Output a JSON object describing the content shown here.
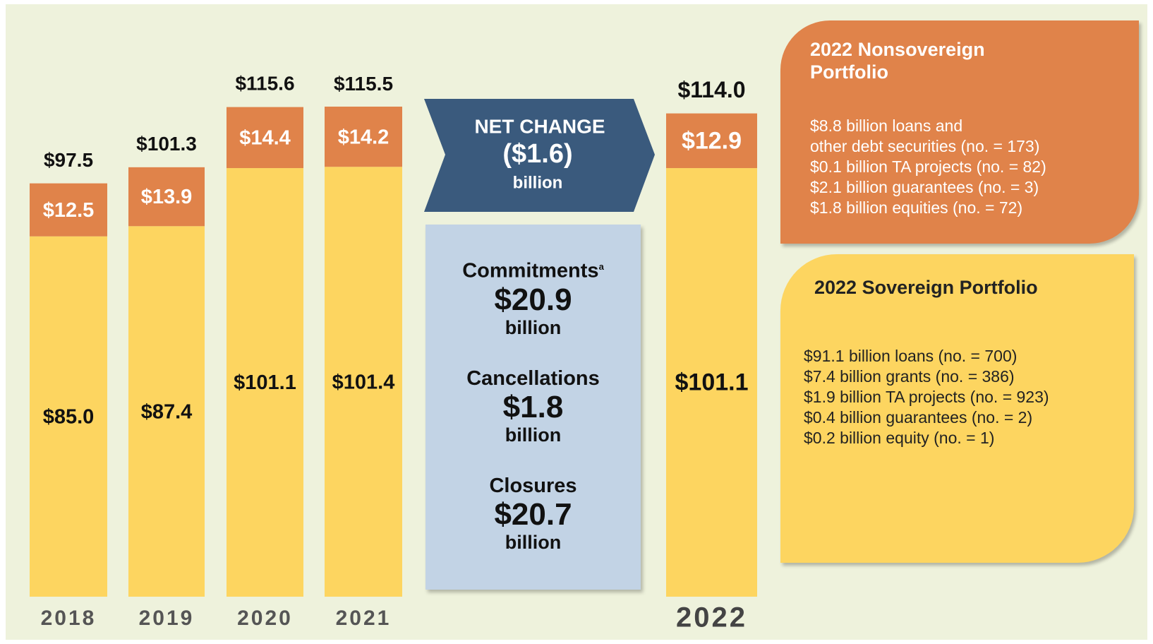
{
  "chart_data": {
    "type": "bar",
    "stacked": true,
    "categories": [
      "2018",
      "2019",
      "2020",
      "2021",
      "2022"
    ],
    "series": [
      {
        "color": "#fdd560",
        "values": [
          85.0,
          87.4,
          101.1,
          101.4,
          101.1
        ],
        "value_labels": [
          "$85.0",
          "$87.4",
          "$101.1",
          "$101.4",
          "$101.1"
        ]
      },
      {
        "color": "#e0834a",
        "values": [
          12.5,
          13.9,
          14.4,
          14.2,
          12.9
        ],
        "value_labels": [
          "$12.5",
          "$13.9",
          "$14.4",
          "$14.2",
          "$12.9"
        ]
      }
    ],
    "totals": [
      97.5,
      101.3,
      115.6,
      115.5,
      114.0
    ],
    "total_labels": [
      "$97.5",
      "$101.3",
      "$115.6",
      "$115.5",
      "$114.0"
    ]
  },
  "net_change": {
    "label": "NET CHANGE",
    "value": "($1.6)",
    "unit": "billion"
  },
  "flows": [
    {
      "label": "Commitments",
      "note": "a",
      "value": "$20.9",
      "unit": "billion"
    },
    {
      "label": "Cancellations",
      "value": "$1.8",
      "unit": "billion"
    },
    {
      "label": "Closures",
      "value": "$20.7",
      "unit": "billion"
    }
  ],
  "panels": [
    {
      "title": "2022 Nonsovereign Portfolio",
      "lines": [
        "$8.8 billion loans and",
        "other debt securities (no. = 173)",
        "$0.1 billion TA projects (no. = 82)",
        "$2.1 billion guarantees (no. = 3)",
        "$1.8 billion equities (no. = 72)"
      ]
    },
    {
      "title": "2022 Sovereign Portfolio",
      "lines": [
        "$91.1 billion loans (no. = 700)",
        "$7.4 billion grants (no. = 386)",
        "$1.9 billion TA projects (no. = 923)",
        "$0.4 billion guarantees (no. = 2)",
        "$0.2 billion equity (no. = 1)"
      ]
    }
  ]
}
